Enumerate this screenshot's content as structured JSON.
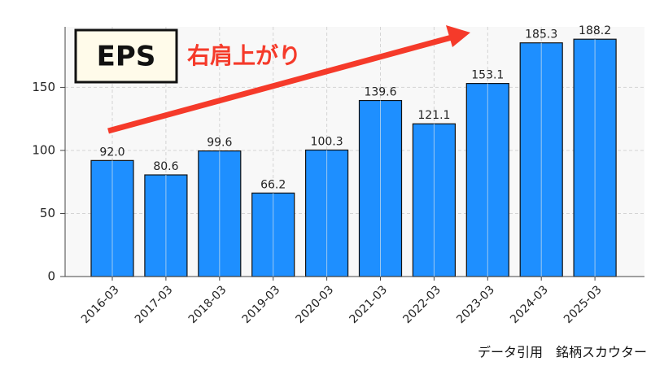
{
  "chart_data": {
    "type": "bar",
    "title": "EPS",
    "annotation": "右肩上がり",
    "source": "データ引用　銘柄スカウター",
    "categories": [
      "2016-03",
      "2017-03",
      "2018-03",
      "2019-03",
      "2020-03",
      "2021-03",
      "2022-03",
      "2023-03",
      "2024-03",
      "2025-03"
    ],
    "values": [
      92.0,
      80.6,
      99.6,
      66.2,
      100.3,
      139.6,
      121.1,
      153.1,
      185.3,
      188.2
    ],
    "value_labels": [
      "92.0",
      "80.6",
      "99.6",
      "66.2",
      "100.3",
      "139.6",
      "121.1",
      "153.1",
      "185.3",
      "188.2"
    ],
    "color": "#1e8fff",
    "ylim": [
      0,
      198
    ],
    "yticks": [
      0,
      50,
      100,
      150
    ],
    "grid": true
  }
}
